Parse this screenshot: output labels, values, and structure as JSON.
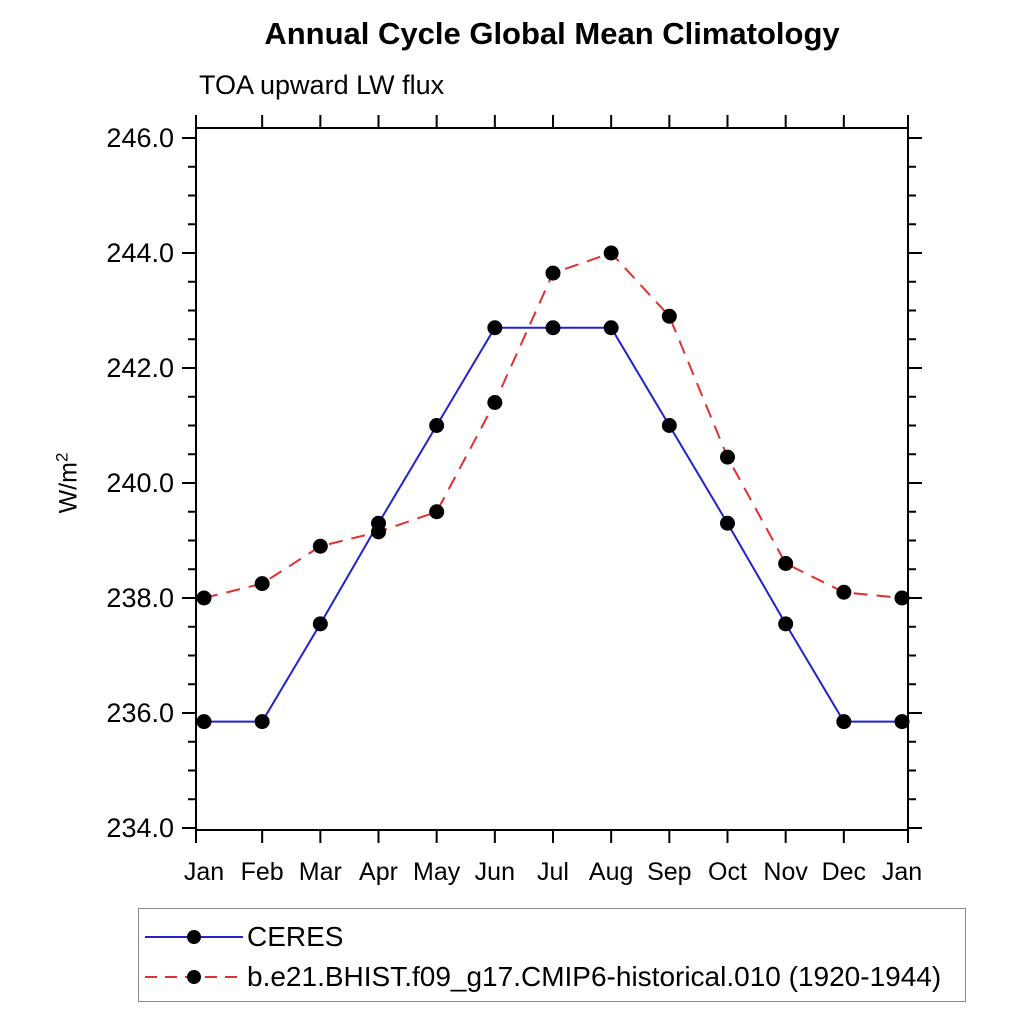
{
  "page": {
    "background": "#ffffff",
    "axis_color": "#000000",
    "tick_label_color": "#000000"
  },
  "chart_data": {
    "type": "line",
    "title": "Annual Cycle Global Mean Climatology",
    "subtitle": "TOA upward LW flux",
    "ylabel_base": "W/m",
    "ylabel_sup": "2",
    "xlabel": "",
    "x_categories": [
      "Jan",
      "Feb",
      "Mar",
      "Apr",
      "May",
      "Jun",
      "Jul",
      "Aug",
      "Sep",
      "Oct",
      "Nov",
      "Dec",
      "Jan"
    ],
    "ylim": [
      234.0,
      246.0
    ],
    "y_major_step": 2.0,
    "y_minor_step": 0.5,
    "y_tick_labels": [
      "234.0",
      "236.0",
      "238.0",
      "240.0",
      "242.0",
      "244.0",
      "246.0"
    ],
    "grid": false,
    "legend_position": "bottom-left-box",
    "series": [
      {
        "name": "CERES",
        "color": "#2222cc",
        "line_style": "solid",
        "marker": "circle",
        "marker_color": "#000000",
        "values": [
          235.85,
          235.85,
          237.55,
          239.3,
          241.0,
          242.7,
          242.7,
          242.7,
          241.0,
          239.3,
          237.55,
          235.85,
          235.85
        ]
      },
      {
        "name": "b.e21.BHIST.f09_g17.CMIP6-historical.010 (1920-1944)",
        "color": "#e03030",
        "line_style": "dashed",
        "marker": "circle",
        "marker_color": "#000000",
        "values": [
          238.0,
          238.25,
          238.9,
          239.15,
          239.5,
          241.4,
          243.65,
          244.0,
          242.9,
          240.45,
          238.6,
          238.1,
          238.0
        ]
      }
    ]
  }
}
